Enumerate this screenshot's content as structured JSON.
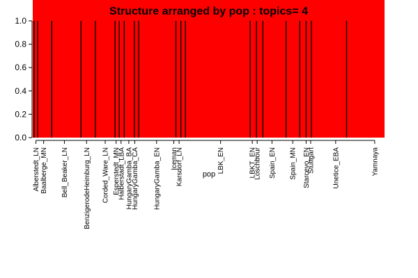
{
  "chart_data": {
    "type": "bar",
    "title": "Structure arranged by pop : topics= 4",
    "xlabel": "pop",
    "ylabel": "",
    "ylim": [
      0,
      1
    ],
    "yticks": [
      "0.0",
      "0.2",
      "0.4",
      "0.6",
      "0.8",
      "1.0"
    ],
    "grid": false,
    "fill_color": "#ff0000",
    "separator_color": "#000000",
    "x_domain": [
      0,
      100
    ],
    "categories": [
      "Alberstedt_LN",
      "Baalberge_MN",
      "Bell_Beaker_LN",
      "BenzigerodeHeimburg_LN",
      "Corded_Ware_LN",
      "Esperstedt_MN",
      "Halberstadt_LBA",
      "HungaryGamba_BA",
      "HungaryGamba_CA",
      "HungaryGamba_EN",
      "Iceman",
      "Karsdorf_LN",
      "LBK_EN",
      "LBKT_EN",
      "Loschbour",
      "Spain_EN",
      "Spain_MN",
      "Starcevo_EN",
      "Stuttgart",
      "Unetice_EBA",
      "Yamnaya"
    ],
    "label_positions": [
      0.9,
      3.1,
      9.0,
      15.3,
      20.6,
      23.7,
      25.1,
      27.3,
      29.0,
      35.2,
      40.1,
      41.6,
      53.4,
      62.4,
      63.8,
      68.0,
      73.9,
      77.7,
      79.0,
      86.1,
      97.2
    ],
    "boundaries": [
      0.4,
      1.4,
      5.4,
      13.7,
      17.8,
      23.4,
      24.6,
      26.0,
      28.9,
      30.1,
      40.7,
      42.1,
      43.4,
      61.8,
      63.6,
      65.4,
      72.0,
      75.9,
      77.7,
      79.2,
      89.2
    ],
    "values": [
      1,
      1,
      1,
      1,
      1,
      1,
      1,
      1,
      1,
      1,
      1,
      1,
      1,
      1,
      1,
      1,
      1,
      1,
      1,
      1,
      1
    ]
  }
}
